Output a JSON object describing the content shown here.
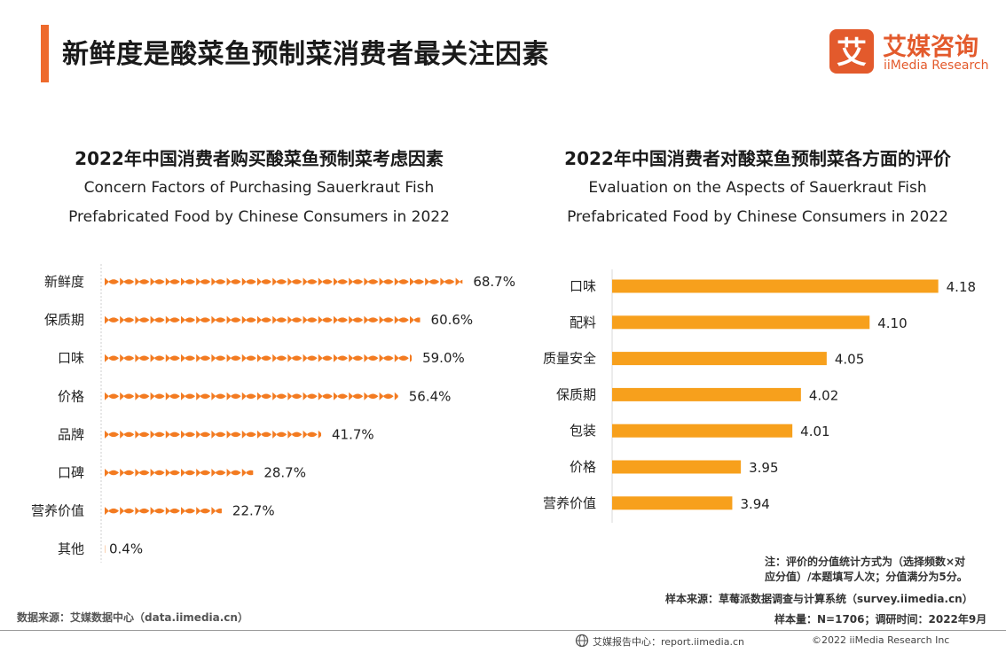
{
  "page_title": "新鲜度是酸菜鱼预制菜消费者最关注因素",
  "logo": {
    "cn": "艾媒咨询",
    "en": "iiMedia Research",
    "mark_char": "艾",
    "color": "#e35a2c"
  },
  "chart_data": [
    {
      "type": "bar",
      "style": "pictograph-fish",
      "title_cn": "2022年中国消费者购买酸菜鱼预制菜考虑因素",
      "title_en_line1": "Concern Factors of Purchasing Sauerkraut Fish",
      "title_en_line2": "Prefabricated Food by Chinese Consumers in 2022",
      "categories": [
        "新鲜度",
        "保质期",
        "口味",
        "价格",
        "品牌",
        "口碑",
        "营养价值",
        "其他"
      ],
      "values": [
        68.7,
        60.6,
        59.0,
        56.4,
        41.7,
        28.7,
        22.7,
        0.4
      ],
      "labels": [
        "68.7%",
        "60.6%",
        "59.0%",
        "56.4%",
        "41.7%",
        "28.7%",
        "22.7%",
        "0.4%"
      ],
      "unit": "%",
      "color": "#f37b21"
    },
    {
      "type": "bar",
      "orientation": "horizontal",
      "title_cn": "2022年中国消费者对酸菜鱼预制菜各方面的评价",
      "title_en_line1": "Evaluation on the Aspects of Sauerkraut Fish",
      "title_en_line2": "Prefabricated Food by Chinese Consumers in 2022",
      "categories": [
        "口味",
        "配料",
        "质量安全",
        "保质期",
        "包装",
        "价格",
        "营养价值"
      ],
      "values": [
        4.18,
        4.1,
        4.05,
        4.02,
        4.01,
        3.95,
        3.94
      ],
      "labels": [
        "4.18",
        "4.10",
        "4.05",
        "4.02",
        "4.01",
        "3.95",
        "3.94"
      ],
      "color": "#f7a01c"
    }
  ],
  "notes": {
    "line1": "注：评价的分值统计方式为（选择频数×对",
    "line2": "应分值）/本题填写人次；分值满分为5分。",
    "sample_source": "样本来源：草莓派数据调查与计算系统（survey.iimedia.cn）",
    "sample_size": "样本量：N=1706；调研时间：2022年9月",
    "data_source": "数据来源：艾媒数据中心（data.iimedia.cn）"
  },
  "footer": {
    "report_center": "艾媒报告中心：report.iimedia.cn",
    "copyright": "©2022  iiMedia Research  Inc"
  }
}
